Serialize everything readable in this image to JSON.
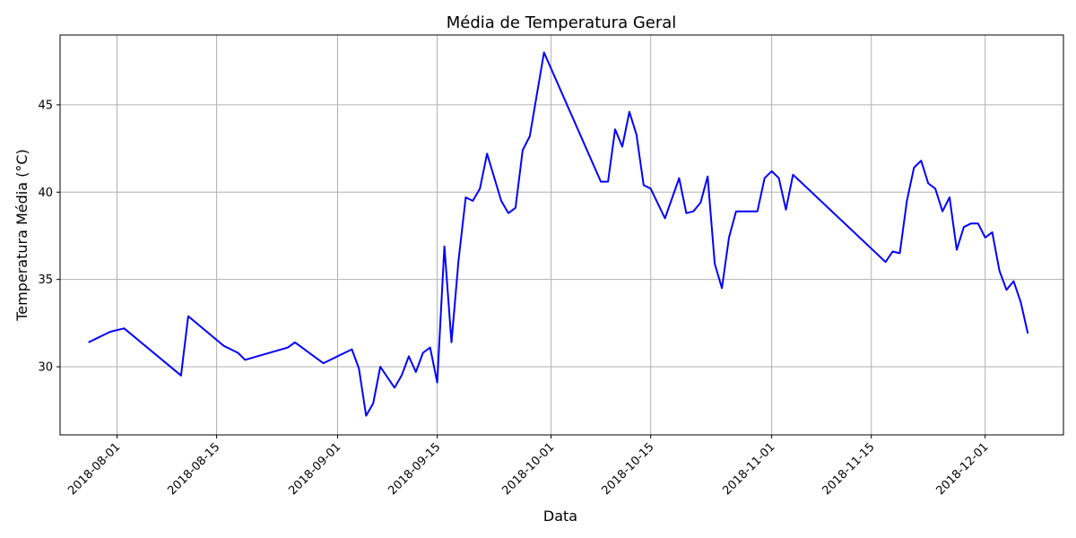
{
  "chart_data": {
    "type": "line",
    "title": "Média de Temperatura Geral",
    "xlabel": "Data",
    "ylabel": "Temperatura Média (°C)",
    "xlim": [
      "2018-07-24",
      "2018-12-12"
    ],
    "ylim": [
      26.1,
      49.0
    ],
    "x_ticks": [
      "2018-08-01",
      "2018-08-15",
      "2018-09-01",
      "2018-09-15",
      "2018-10-01",
      "2018-10-15",
      "2018-11-01",
      "2018-11-15",
      "2018-12-01"
    ],
    "y_ticks": [
      30,
      35,
      40,
      45
    ],
    "grid": true,
    "colors": {
      "line": "#0000ff",
      "grid": "#b0b0b0",
      "axis": "#000000"
    },
    "series": [
      {
        "x": [
          "2018-07-28",
          "2018-07-31",
          "2018-08-02",
          "2018-08-10",
          "2018-08-11",
          "2018-08-16",
          "2018-08-18",
          "2018-08-19",
          "2018-08-25",
          "2018-08-26",
          "2018-08-30",
          "2018-09-03",
          "2018-09-04",
          "2018-09-05",
          "2018-09-06",
          "2018-09-07",
          "2018-09-09",
          "2018-09-10",
          "2018-09-11",
          "2018-09-12",
          "2018-09-13",
          "2018-09-14",
          "2018-09-15",
          "2018-09-16",
          "2018-09-17",
          "2018-09-18",
          "2018-09-19",
          "2018-09-20",
          "2018-09-21",
          "2018-09-22",
          "2018-09-24",
          "2018-09-25",
          "2018-09-26",
          "2018-09-27",
          "2018-09-28",
          "2018-09-30",
          "2018-10-08",
          "2018-10-09",
          "2018-10-10",
          "2018-10-11",
          "2018-10-12",
          "2018-10-13",
          "2018-10-14",
          "2018-10-15",
          "2018-10-17",
          "2018-10-19",
          "2018-10-20",
          "2018-10-21",
          "2018-10-22",
          "2018-10-23",
          "2018-10-24",
          "2018-10-25",
          "2018-10-26",
          "2018-10-27",
          "2018-10-29",
          "2018-10-30",
          "2018-10-31",
          "2018-11-01",
          "2018-11-02",
          "2018-11-03",
          "2018-11-04",
          "2018-11-17",
          "2018-11-18",
          "2018-11-19",
          "2018-11-20",
          "2018-11-21",
          "2018-11-22",
          "2018-11-23",
          "2018-11-24",
          "2018-11-25",
          "2018-11-26",
          "2018-11-27",
          "2018-11-28",
          "2018-11-29",
          "2018-11-30",
          "2018-12-01",
          "2018-12-02",
          "2018-12-03",
          "2018-12-04",
          "2018-12-05",
          "2018-12-06",
          "2018-12-07"
        ],
        "values": [
          31.4,
          32.0,
          32.2,
          29.5,
          32.9,
          31.2,
          30.8,
          30.4,
          31.1,
          31.4,
          30.2,
          31.0,
          29.9,
          27.2,
          27.9,
          30.0,
          28.8,
          29.5,
          30.6,
          29.7,
          30.8,
          31.1,
          29.1,
          36.9,
          31.4,
          36.1,
          39.7,
          39.5,
          40.2,
          42.2,
          39.5,
          38.8,
          39.1,
          42.4,
          43.2,
          48.0,
          40.6,
          40.6,
          43.6,
          42.6,
          44.6,
          43.3,
          40.4,
          40.2,
          38.5,
          40.8,
          38.8,
          38.9,
          39.4,
          40.9,
          35.9,
          34.5,
          37.4,
          38.9,
          38.9,
          38.9,
          40.8,
          41.2,
          40.8,
          39.0,
          41.0,
          36.0,
          36.6,
          36.5,
          39.5,
          41.4,
          41.8,
          40.5,
          40.2,
          38.9,
          39.7,
          36.7,
          38.0,
          38.2,
          38.2,
          37.4,
          37.7,
          35.5,
          34.4,
          34.9,
          33.7,
          31.9
        ]
      }
    ]
  }
}
